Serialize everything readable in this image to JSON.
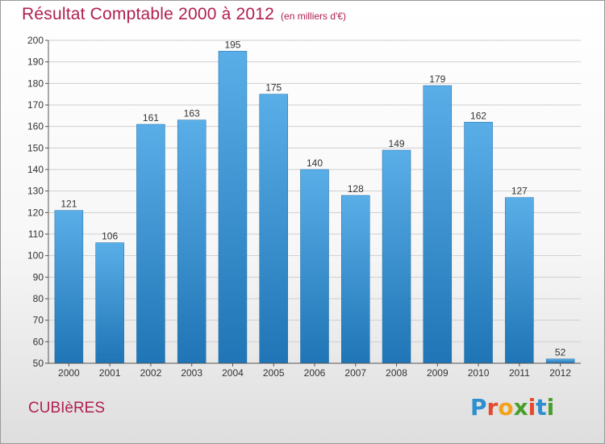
{
  "header": {
    "title": "Résultat Comptable 2000 à 2012",
    "subtitle": "(en milliers d'€)"
  },
  "footer": {
    "commune": "CUBIèRES",
    "logo_letters": [
      "P",
      "r",
      "o",
      "x",
      "i",
      "t",
      "i"
    ],
    "logo_colors": [
      "#2e8fd0",
      "#e64a2e",
      "#f3a21b",
      "#4a9e2c",
      "#e64a2e",
      "#2e8fd0",
      "#4a9e2c"
    ]
  },
  "colors": {
    "bar_top": "#5aaee8",
    "bar_bottom": "#1f75b5",
    "accent": "#b0204f"
  },
  "chart_data": {
    "type": "bar",
    "categories": [
      "2000",
      "2001",
      "2002",
      "2003",
      "2004",
      "2005",
      "2006",
      "2007",
      "2008",
      "2009",
      "2010",
      "2011",
      "2012"
    ],
    "values": [
      121,
      106,
      161,
      163,
      195,
      175,
      140,
      128,
      149,
      179,
      162,
      127,
      52
    ],
    "ylim": [
      50,
      200
    ],
    "yticks": [
      50,
      60,
      70,
      80,
      90,
      100,
      110,
      120,
      130,
      140,
      150,
      160,
      170,
      180,
      190,
      200
    ],
    "grid": true
  }
}
